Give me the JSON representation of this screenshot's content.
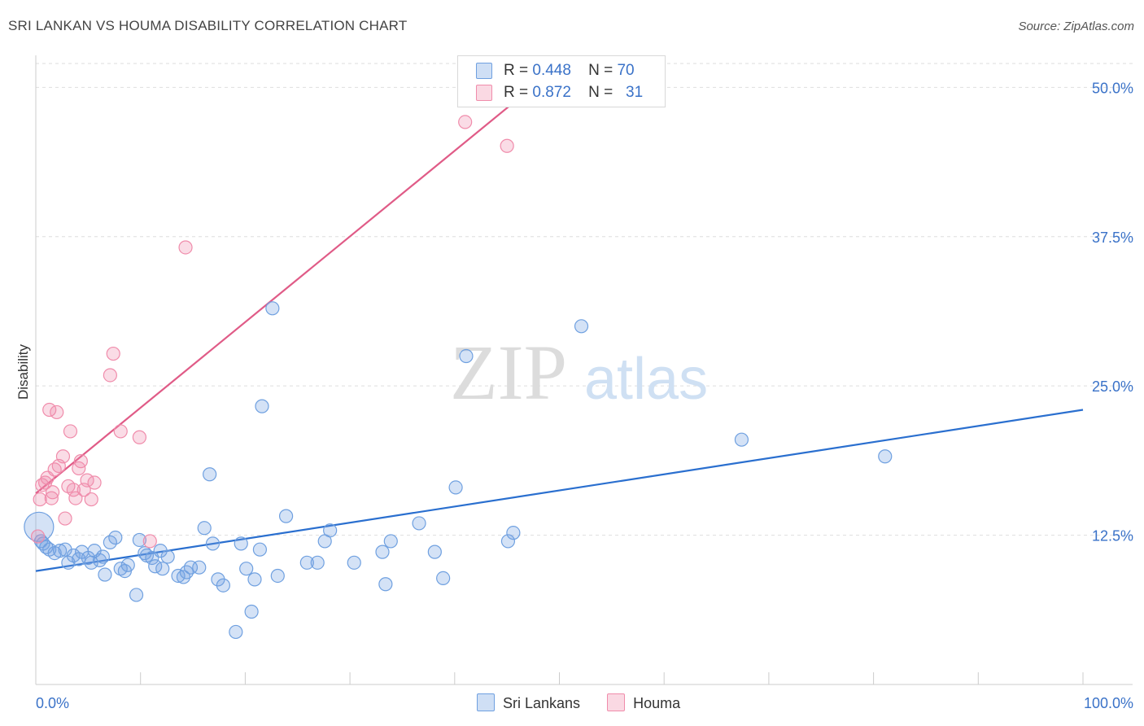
{
  "header": {
    "title": "SRI LANKAN VS HOUMA DISABILITY CORRELATION CHART",
    "source": "Source: ZipAtlas.com"
  },
  "watermark": {
    "zip": "ZIP",
    "atlas": "atlas"
  },
  "legend_top": [
    {
      "r_label": "R =",
      "r_value": "0.448",
      "n_label": "N =",
      "n_value": "70",
      "color": "#6fa0e0"
    },
    {
      "r_label": "R =",
      "r_value": "0.872",
      "n_label": "N =",
      "n_value": "31",
      "color": "#f08cab"
    }
  ],
  "legend_bottom": [
    {
      "label": "Sri Lankans",
      "color": "#6fa0e0"
    },
    {
      "label": "Houma",
      "color": "#f08cab"
    }
  ],
  "chart_data": {
    "type": "scatter",
    "title": "SRI LANKAN VS HOUMA DISABILITY CORRELATION CHART",
    "xlabel": "",
    "ylabel": "Disability",
    "xlim": [
      0,
      100
    ],
    "ylim": [
      0,
      52
    ],
    "x_tick_labels": [
      "0.0%",
      "100.0%"
    ],
    "y_ticks": [
      12.5,
      25.0,
      37.5,
      50.0
    ],
    "y_tick_labels": [
      "12.5%",
      "25.0%",
      "37.5%",
      "50.0%"
    ],
    "series": [
      {
        "name": "Sri Lankans",
        "color": "#6fa0e0",
        "line_color": "#2a6fcf",
        "trend": {
          "x": [
            0,
            100
          ],
          "y": [
            9.5,
            23.0
          ]
        },
        "points": [
          {
            "x": 0.3,
            "y": 13.2,
            "big": true
          },
          {
            "x": 0.5,
            "y": 12.0
          },
          {
            "x": 0.7,
            "y": 11.8
          },
          {
            "x": 1.0,
            "y": 11.5
          },
          {
            "x": 1.3,
            "y": 11.3
          },
          {
            "x": 1.8,
            "y": 11.0
          },
          {
            "x": 2.3,
            "y": 11.2
          },
          {
            "x": 2.8,
            "y": 11.3
          },
          {
            "x": 3.1,
            "y": 10.2
          },
          {
            "x": 3.6,
            "y": 10.8
          },
          {
            "x": 4.1,
            "y": 10.5
          },
          {
            "x": 4.4,
            "y": 11.1
          },
          {
            "x": 5.0,
            "y": 10.6
          },
          {
            "x": 5.3,
            "y": 10.2
          },
          {
            "x": 5.6,
            "y": 11.2
          },
          {
            "x": 6.1,
            "y": 10.4
          },
          {
            "x": 6.4,
            "y": 10.7
          },
          {
            "x": 6.6,
            "y": 9.2
          },
          {
            "x": 7.1,
            "y": 11.9
          },
          {
            "x": 7.6,
            "y": 12.3
          },
          {
            "x": 8.1,
            "y": 9.7
          },
          {
            "x": 8.5,
            "y": 9.5
          },
          {
            "x": 8.8,
            "y": 10.0
          },
          {
            "x": 9.6,
            "y": 7.5
          },
          {
            "x": 9.9,
            "y": 12.1
          },
          {
            "x": 10.4,
            "y": 11.0
          },
          {
            "x": 10.6,
            "y": 10.8
          },
          {
            "x": 11.1,
            "y": 10.6
          },
          {
            "x": 11.4,
            "y": 9.9
          },
          {
            "x": 11.9,
            "y": 11.2
          },
          {
            "x": 12.1,
            "y": 9.7
          },
          {
            "x": 12.6,
            "y": 10.7
          },
          {
            "x": 13.6,
            "y": 9.1
          },
          {
            "x": 14.1,
            "y": 9.0
          },
          {
            "x": 14.4,
            "y": 9.4
          },
          {
            "x": 14.8,
            "y": 9.8
          },
          {
            "x": 15.6,
            "y": 9.8
          },
          {
            "x": 16.1,
            "y": 13.1
          },
          {
            "x": 16.6,
            "y": 17.6
          },
          {
            "x": 16.9,
            "y": 11.8
          },
          {
            "x": 17.4,
            "y": 8.8
          },
          {
            "x": 17.9,
            "y": 8.3
          },
          {
            "x": 19.1,
            "y": 4.4
          },
          {
            "x": 19.6,
            "y": 11.8
          },
          {
            "x": 20.1,
            "y": 9.7
          },
          {
            "x": 20.6,
            "y": 6.1
          },
          {
            "x": 20.9,
            "y": 8.8
          },
          {
            "x": 21.4,
            "y": 11.3
          },
          {
            "x": 21.6,
            "y": 23.3
          },
          {
            "x": 22.6,
            "y": 31.5
          },
          {
            "x": 23.1,
            "y": 9.1
          },
          {
            "x": 23.9,
            "y": 14.1
          },
          {
            "x": 25.9,
            "y": 10.2
          },
          {
            "x": 26.9,
            "y": 10.2
          },
          {
            "x": 27.6,
            "y": 12.0
          },
          {
            "x": 28.1,
            "y": 12.9
          },
          {
            "x": 30.4,
            "y": 10.2
          },
          {
            "x": 33.1,
            "y": 11.1
          },
          {
            "x": 33.4,
            "y": 8.4
          },
          {
            "x": 33.9,
            "y": 12.0
          },
          {
            "x": 36.6,
            "y": 13.5
          },
          {
            "x": 38.1,
            "y": 11.1
          },
          {
            "x": 38.9,
            "y": 8.9
          },
          {
            "x": 40.1,
            "y": 16.5
          },
          {
            "x": 41.1,
            "y": 27.5
          },
          {
            "x": 45.1,
            "y": 12.0
          },
          {
            "x": 45.6,
            "y": 12.7
          },
          {
            "x": 52.1,
            "y": 30.0
          },
          {
            "x": 67.4,
            "y": 20.5
          },
          {
            "x": 81.1,
            "y": 19.1
          }
        ]
      },
      {
        "name": "Houma",
        "color": "#f08cab",
        "line_color": "#e05b87",
        "trend": {
          "x": [
            0,
            47.4
          ],
          "y": [
            16.0,
            50.0
          ]
        },
        "points": [
          {
            "x": 0.2,
            "y": 12.4
          },
          {
            "x": 0.4,
            "y": 15.5
          },
          {
            "x": 0.6,
            "y": 16.7
          },
          {
            "x": 0.9,
            "y": 16.9
          },
          {
            "x": 1.1,
            "y": 17.3
          },
          {
            "x": 1.3,
            "y": 23.0
          },
          {
            "x": 1.5,
            "y": 15.6
          },
          {
            "x": 1.6,
            "y": 16.1
          },
          {
            "x": 1.8,
            "y": 18.0
          },
          {
            "x": 2.0,
            "y": 22.8
          },
          {
            "x": 2.2,
            "y": 18.3
          },
          {
            "x": 2.6,
            "y": 19.1
          },
          {
            "x": 2.8,
            "y": 13.9
          },
          {
            "x": 3.1,
            "y": 16.6
          },
          {
            "x": 3.3,
            "y": 21.2
          },
          {
            "x": 3.6,
            "y": 16.3
          },
          {
            "x": 3.8,
            "y": 15.6
          },
          {
            "x": 4.1,
            "y": 18.1
          },
          {
            "x": 4.3,
            "y": 18.7
          },
          {
            "x": 4.6,
            "y": 16.3
          },
          {
            "x": 4.9,
            "y": 17.1
          },
          {
            "x": 5.3,
            "y": 15.5
          },
          {
            "x": 5.6,
            "y": 16.9
          },
          {
            "x": 7.1,
            "y": 25.9
          },
          {
            "x": 7.4,
            "y": 27.7
          },
          {
            "x": 8.1,
            "y": 21.2
          },
          {
            "x": 9.9,
            "y": 20.7
          },
          {
            "x": 10.9,
            "y": 12.0
          },
          {
            "x": 14.3,
            "y": 36.6
          },
          {
            "x": 41.0,
            "y": 47.1
          },
          {
            "x": 45.0,
            "y": 45.1
          }
        ]
      }
    ]
  }
}
